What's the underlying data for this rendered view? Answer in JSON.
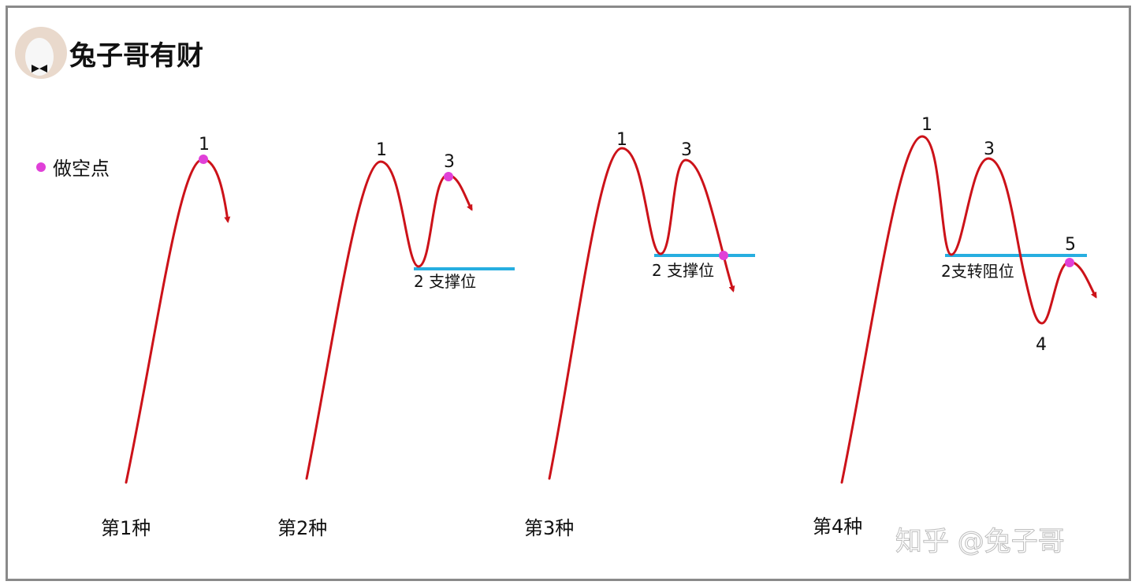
{
  "logo": {
    "text": "兔子哥有财"
  },
  "legend": {
    "label": "做空点",
    "color": "#e040d8"
  },
  "colors": {
    "curve": "#cc1219",
    "support": "#27aee0",
    "short_point": "#e040d8"
  },
  "panels": [
    {
      "title": "第1种",
      "points": {
        "p1": "1"
      }
    },
    {
      "title": "第2种",
      "points": {
        "p1": "1",
        "p3": "3"
      },
      "line_label": "2 支撑位"
    },
    {
      "title": "第3种",
      "points": {
        "p1": "1",
        "p3": "3"
      },
      "line_label": "2 支撑位"
    },
    {
      "title": "第4种",
      "points": {
        "p1": "1",
        "p3": "3",
        "p4": "4",
        "p5": "5"
      },
      "line_label": "2支转阻位"
    }
  ],
  "watermark": "知乎 @兔子哥"
}
